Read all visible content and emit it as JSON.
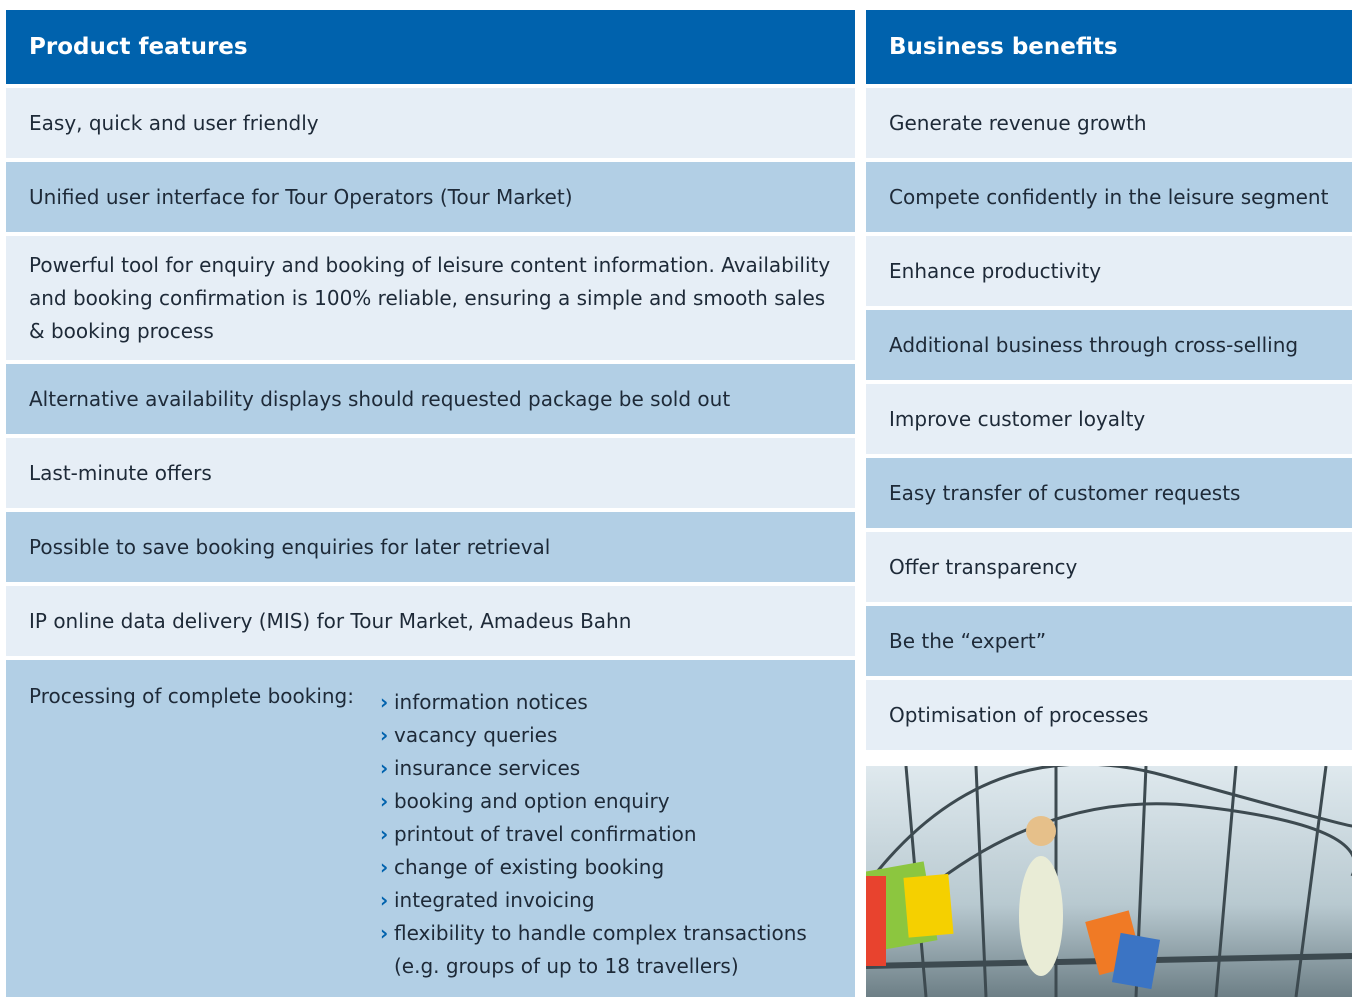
{
  "product_features": {
    "title": "Product features",
    "rows": [
      "Easy, quick and user friendly",
      "Unified user interface for Tour Operators (Tour Market)",
      "Powerful tool for enquiry and booking of leisure content information. Availability and booking confirmation is 100% reliable, ensuring a simple and smooth sales & booking process",
      "Alternative availability displays should requested package be sold out",
      "Last-minute offers",
      "Possible to save booking enquiries for later retrieval",
      "IP online data delivery (MIS) for Tour Market, Amadeus Bahn"
    ],
    "processing": {
      "label": "Processing of complete booking:",
      "items": [
        "information notices",
        "vacancy queries",
        "insurance services",
        "booking and option enquiry",
        "printout of travel confirmation",
        "change of existing booking",
        "integrated invoicing",
        "flexibility to handle complex transactions (e.g. groups of up to 18 travellers)"
      ]
    }
  },
  "business_benefits": {
    "title": "Business benefits",
    "rows": [
      "Generate revenue growth",
      "Compete confidently in the leisure segment",
      "Enhance productivity",
      "Additional business through cross-selling",
      "Improve customer loyalty",
      "Easy transfer of customer requests",
      "Offer transparency",
      "Be the “expert”",
      "Optimisation of processes"
    ]
  }
}
